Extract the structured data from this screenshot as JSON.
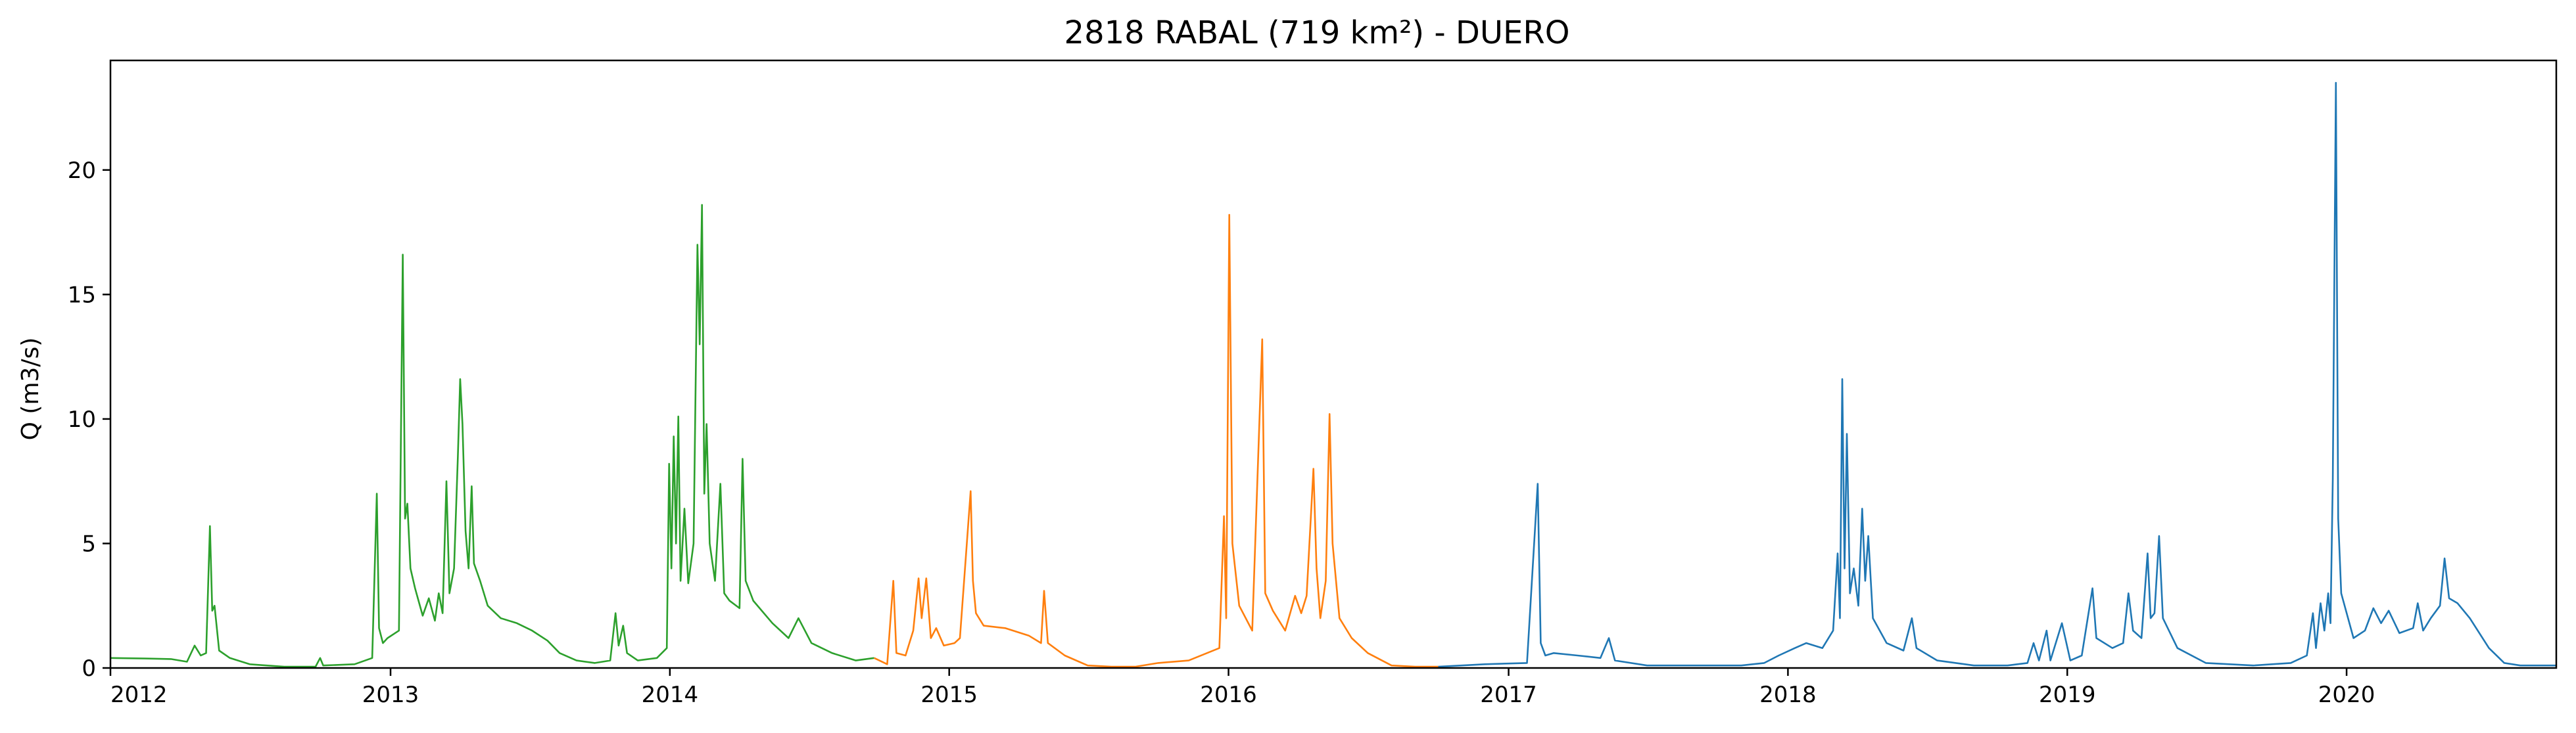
{
  "chart_data": {
    "type": "line",
    "title": "2818 RABAL (719 km²) - DUERO",
    "xlabel": "",
    "ylabel": "Q (m3/s)",
    "xlim": [
      "2012-01-01",
      "2020-10-01"
    ],
    "ylim": [
      0,
      24.4
    ],
    "x_ticks": [
      "2012",
      "2013",
      "2014",
      "2015",
      "2016",
      "2017",
      "2018",
      "2019",
      "2020"
    ],
    "y_ticks": [
      "0",
      "5",
      "10",
      "15",
      "20"
    ],
    "grid": false,
    "legend": "none",
    "series": [
      {
        "color": "#2ca02c",
        "points": [
          [
            "2012-01-01",
            0.4
          ],
          [
            "2012-02-15",
            0.38
          ],
          [
            "2012-03-20",
            0.36
          ],
          [
            "2012-04-10",
            0.25
          ],
          [
            "2012-04-20",
            0.9
          ],
          [
            "2012-04-28",
            0.5
          ],
          [
            "2012-05-05",
            0.6
          ],
          [
            "2012-05-10",
            5.7
          ],
          [
            "2012-05-13",
            2.3
          ],
          [
            "2012-05-16",
            2.5
          ],
          [
            "2012-05-22",
            0.7
          ],
          [
            "2012-06-05",
            0.4
          ],
          [
            "2012-07-01",
            0.15
          ],
          [
            "2012-08-15",
            0.05
          ],
          [
            "2012-09-25",
            0.05
          ],
          [
            "2012-10-01",
            0.4
          ],
          [
            "2012-10-05",
            0.1
          ],
          [
            "2012-11-15",
            0.15
          ],
          [
            "2012-12-08",
            0.4
          ],
          [
            "2012-12-14",
            7.0
          ],
          [
            "2012-12-17",
            1.6
          ],
          [
            "2012-12-22",
            1.0
          ],
          [
            "2012-12-28",
            1.2
          ],
          [
            "2013-01-12",
            1.5
          ],
          [
            "2013-01-17",
            16.6
          ],
          [
            "2013-01-20",
            6.0
          ],
          [
            "2013-01-23",
            6.6
          ],
          [
            "2013-01-27",
            4.0
          ],
          [
            "2013-02-02",
            3.2
          ],
          [
            "2013-02-12",
            2.1
          ],
          [
            "2013-02-20",
            2.8
          ],
          [
            "2013-02-28",
            1.9
          ],
          [
            "2013-03-05",
            3.0
          ],
          [
            "2013-03-10",
            2.2
          ],
          [
            "2013-03-15",
            7.5
          ],
          [
            "2013-03-19",
            3.0
          ],
          [
            "2013-03-25",
            4.0
          ],
          [
            "2013-03-30",
            8.5
          ],
          [
            "2013-04-02",
            11.6
          ],
          [
            "2013-04-05",
            9.8
          ],
          [
            "2013-04-09",
            5.5
          ],
          [
            "2013-04-13",
            4.0
          ],
          [
            "2013-04-17",
            7.3
          ],
          [
            "2013-04-20",
            4.2
          ],
          [
            "2013-04-28",
            3.5
          ],
          [
            "2013-05-08",
            2.5
          ],
          [
            "2013-05-25",
            2.0
          ],
          [
            "2013-06-15",
            1.8
          ],
          [
            "2013-07-05",
            1.5
          ],
          [
            "2013-07-25",
            1.1
          ],
          [
            "2013-08-10",
            0.6
          ],
          [
            "2013-09-01",
            0.3
          ],
          [
            "2013-09-25",
            0.2
          ],
          [
            "2013-10-15",
            0.3
          ],
          [
            "2013-10-22",
            2.2
          ],
          [
            "2013-10-26",
            0.9
          ],
          [
            "2013-11-01",
            1.7
          ],
          [
            "2013-11-06",
            0.6
          ],
          [
            "2013-11-20",
            0.3
          ],
          [
            "2013-12-15",
            0.4
          ],
          [
            "2013-12-28",
            0.8
          ],
          [
            "2013-12-31",
            8.2
          ],
          [
            "2014-01-03",
            4.0
          ],
          [
            "2014-01-06",
            9.3
          ],
          [
            "2014-01-09",
            5.0
          ],
          [
            "2014-01-12",
            10.1
          ],
          [
            "2014-01-15",
            3.5
          ],
          [
            "2014-01-20",
            6.4
          ],
          [
            "2014-01-25",
            3.4
          ],
          [
            "2014-02-01",
            5.0
          ],
          [
            "2014-02-06",
            17.0
          ],
          [
            "2014-02-09",
            13.0
          ],
          [
            "2014-02-12",
            18.6
          ],
          [
            "2014-02-15",
            7.0
          ],
          [
            "2014-02-18",
            9.8
          ],
          [
            "2014-02-22",
            5.0
          ],
          [
            "2014-03-01",
            3.5
          ],
          [
            "2014-03-08",
            7.4
          ],
          [
            "2014-03-13",
            3.0
          ],
          [
            "2014-03-20",
            2.7
          ],
          [
            "2014-04-02",
            2.4
          ],
          [
            "2014-04-06",
            8.4
          ],
          [
            "2014-04-10",
            3.5
          ],
          [
            "2014-04-20",
            2.7
          ],
          [
            "2014-05-15",
            1.8
          ],
          [
            "2014-06-05",
            1.2
          ],
          [
            "2014-06-18",
            2.0
          ],
          [
            "2014-07-05",
            1.0
          ],
          [
            "2014-08-01",
            0.6
          ],
          [
            "2014-09-01",
            0.3
          ],
          [
            "2014-09-25",
            0.4
          ]
        ]
      },
      {
        "color": "#ff7f0e",
        "points": [
          [
            "2014-09-25",
            0.4
          ],
          [
            "2014-10-12",
            0.15
          ],
          [
            "2014-10-20",
            3.5
          ],
          [
            "2014-10-24",
            0.6
          ],
          [
            "2014-11-05",
            0.5
          ],
          [
            "2014-11-15",
            1.5
          ],
          [
            "2014-11-22",
            3.6
          ],
          [
            "2014-11-26",
            2.0
          ],
          [
            "2014-12-02",
            3.6
          ],
          [
            "2014-12-08",
            1.2
          ],
          [
            "2014-12-15",
            1.6
          ],
          [
            "2014-12-25",
            0.9
          ],
          [
            "2015-01-08",
            1.0
          ],
          [
            "2015-01-15",
            1.2
          ],
          [
            "2015-01-29",
            7.1
          ],
          [
            "2015-02-01",
            3.5
          ],
          [
            "2015-02-05",
            2.2
          ],
          [
            "2015-02-15",
            1.7
          ],
          [
            "2015-03-15",
            1.6
          ],
          [
            "2015-04-15",
            1.3
          ],
          [
            "2015-05-01",
            1.0
          ],
          [
            "2015-05-05",
            3.1
          ],
          [
            "2015-05-10",
            1.0
          ],
          [
            "2015-06-01",
            0.5
          ],
          [
            "2015-07-01",
            0.1
          ],
          [
            "2015-08-01",
            0.05
          ],
          [
            "2015-09-01",
            0.05
          ],
          [
            "2015-10-01",
            0.2
          ],
          [
            "2015-11-10",
            0.3
          ],
          [
            "2015-12-20",
            0.8
          ],
          [
            "2015-12-26",
            6.1
          ],
          [
            "2015-12-29",
            2.0
          ],
          [
            "2016-01-02",
            18.2
          ],
          [
            "2016-01-06",
            5.0
          ],
          [
            "2016-01-15",
            2.5
          ],
          [
            "2016-02-01",
            1.5
          ],
          [
            "2016-02-14",
            13.2
          ],
          [
            "2016-02-18",
            3.0
          ],
          [
            "2016-02-28",
            2.3
          ],
          [
            "2016-03-15",
            1.5
          ],
          [
            "2016-03-28",
            2.9
          ],
          [
            "2016-04-05",
            2.2
          ],
          [
            "2016-04-12",
            2.9
          ],
          [
            "2016-04-21",
            8.0
          ],
          [
            "2016-04-25",
            4.0
          ],
          [
            "2016-04-30",
            2.0
          ],
          [
            "2016-05-07",
            3.5
          ],
          [
            "2016-05-12",
            10.2
          ],
          [
            "2016-05-16",
            5.0
          ],
          [
            "2016-05-25",
            2.0
          ],
          [
            "2016-06-10",
            1.2
          ],
          [
            "2016-07-01",
            0.6
          ],
          [
            "2016-08-01",
            0.1
          ],
          [
            "2016-09-01",
            0.05
          ],
          [
            "2016-10-01",
            0.05
          ]
        ]
      },
      {
        "color": "#1f77b4",
        "points": [
          [
            "2016-10-01",
            0.05
          ],
          [
            "2016-12-01",
            0.15
          ],
          [
            "2017-01-25",
            0.2
          ],
          [
            "2017-02-08",
            7.4
          ],
          [
            "2017-02-12",
            1.0
          ],
          [
            "2017-02-18",
            0.5
          ],
          [
            "2017-03-01",
            0.6
          ],
          [
            "2017-04-01",
            0.5
          ],
          [
            "2017-05-01",
            0.4
          ],
          [
            "2017-05-12",
            1.2
          ],
          [
            "2017-05-20",
            0.3
          ],
          [
            "2017-07-01",
            0.1
          ],
          [
            "2017-10-01",
            0.1
          ],
          [
            "2017-11-01",
            0.1
          ],
          [
            "2017-12-01",
            0.2
          ],
          [
            "2017-12-20",
            0.5
          ],
          [
            "2018-01-10",
            0.8
          ],
          [
            "2018-01-25",
            1.0
          ],
          [
            "2018-02-15",
            0.8
          ],
          [
            "2018-03-01",
            1.5
          ],
          [
            "2018-03-07",
            4.6
          ],
          [
            "2018-03-10",
            2.0
          ],
          [
            "2018-03-13",
            11.6
          ],
          [
            "2018-03-16",
            4.0
          ],
          [
            "2018-03-19",
            9.4
          ],
          [
            "2018-03-23",
            3.0
          ],
          [
            "2018-03-28",
            4.0
          ],
          [
            "2018-04-03",
            2.5
          ],
          [
            "2018-04-08",
            6.4
          ],
          [
            "2018-04-12",
            3.5
          ],
          [
            "2018-04-16",
            5.3
          ],
          [
            "2018-04-22",
            2.0
          ],
          [
            "2018-05-10",
            1.0
          ],
          [
            "2018-06-01",
            0.7
          ],
          [
            "2018-06-12",
            2.0
          ],
          [
            "2018-06-18",
            0.8
          ],
          [
            "2018-07-15",
            0.3
          ],
          [
            "2018-09-01",
            0.1
          ],
          [
            "2018-10-15",
            0.1
          ],
          [
            "2018-11-10",
            0.2
          ],
          [
            "2018-11-18",
            1.0
          ],
          [
            "2018-11-25",
            0.3
          ],
          [
            "2018-12-05",
            1.5
          ],
          [
            "2018-12-10",
            0.3
          ],
          [
            "2018-12-25",
            1.8
          ],
          [
            "2019-01-05",
            0.3
          ],
          [
            "2019-01-20",
            0.5
          ],
          [
            "2019-02-03",
            3.2
          ],
          [
            "2019-02-08",
            1.2
          ],
          [
            "2019-03-01",
            0.8
          ],
          [
            "2019-03-15",
            1.0
          ],
          [
            "2019-03-22",
            3.0
          ],
          [
            "2019-03-28",
            1.5
          ],
          [
            "2019-04-08",
            1.2
          ],
          [
            "2019-04-16",
            4.6
          ],
          [
            "2019-04-20",
            2.0
          ],
          [
            "2019-04-25",
            2.2
          ],
          [
            "2019-05-01",
            5.3
          ],
          [
            "2019-05-06",
            2.0
          ],
          [
            "2019-05-25",
            0.8
          ],
          [
            "2019-07-01",
            0.2
          ],
          [
            "2019-09-01",
            0.1
          ],
          [
            "2019-10-20",
            0.2
          ],
          [
            "2019-11-10",
            0.5
          ],
          [
            "2019-11-18",
            2.2
          ],
          [
            "2019-11-22",
            0.8
          ],
          [
            "2019-11-28",
            2.6
          ],
          [
            "2019-12-03",
            1.5
          ],
          [
            "2019-12-08",
            3.0
          ],
          [
            "2019-12-11",
            1.8
          ],
          [
            "2019-12-14",
            7.6
          ],
          [
            "2019-12-18",
            23.5
          ],
          [
            "2019-12-21",
            6.0
          ],
          [
            "2019-12-25",
            3.0
          ],
          [
            "2020-01-10",
            1.2
          ],
          [
            "2020-01-25",
            1.5
          ],
          [
            "2020-02-05",
            2.4
          ],
          [
            "2020-02-15",
            1.8
          ],
          [
            "2020-02-25",
            2.3
          ],
          [
            "2020-03-10",
            1.4
          ],
          [
            "2020-03-28",
            1.6
          ],
          [
            "2020-04-03",
            2.6
          ],
          [
            "2020-04-10",
            1.5
          ],
          [
            "2020-04-20",
            2.0
          ],
          [
            "2020-05-02",
            2.5
          ],
          [
            "2020-05-08",
            4.4
          ],
          [
            "2020-05-14",
            2.8
          ],
          [
            "2020-05-25",
            2.6
          ],
          [
            "2020-06-10",
            2.0
          ],
          [
            "2020-07-05",
            0.8
          ],
          [
            "2020-07-25",
            0.2
          ],
          [
            "2020-08-15",
            0.1
          ],
          [
            "2020-10-01",
            0.1
          ]
        ]
      }
    ]
  }
}
